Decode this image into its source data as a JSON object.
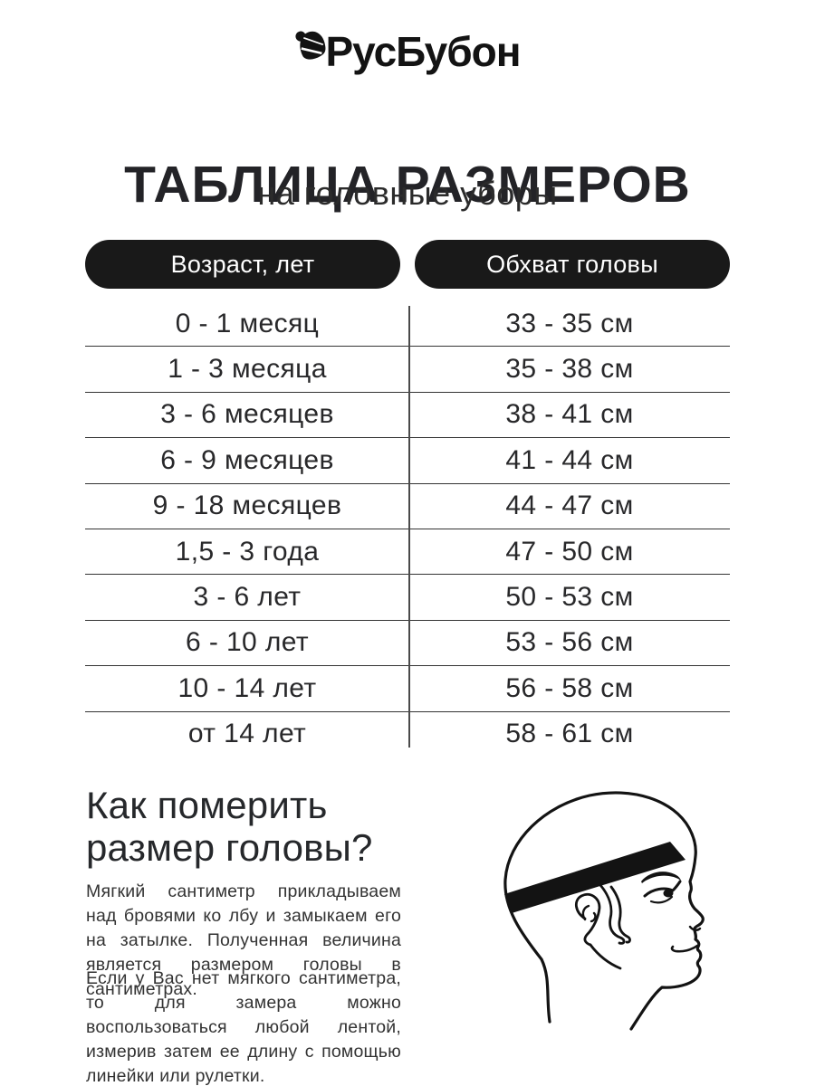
{
  "brand": {
    "name": "РусБубон",
    "logo_icon": "beanie-hat"
  },
  "title": "ТАБЛИЦА РАЗМЕРОВ",
  "subtitle": "на головные уборы",
  "size_table": {
    "columns": [
      {
        "key": "age",
        "label": "Возраст, лет"
      },
      {
        "key": "circumference",
        "label": "Обхват головы"
      }
    ],
    "rows": [
      {
        "age": "0 - 1 месяц",
        "circumference": "33 - 35 см"
      },
      {
        "age": "1 - 3 месяца",
        "circumference": "35 - 38 см"
      },
      {
        "age": "3 - 6 месяцев",
        "circumference": "38 - 41 см"
      },
      {
        "age": "6 - 9 месяцев",
        "circumference": "41 - 44 см"
      },
      {
        "age": "9 - 18 месяцев",
        "circumference": "44 - 47 см"
      },
      {
        "age": "1,5 - 3 года",
        "circumference": "47 - 50 см"
      },
      {
        "age": "3 - 6 лет",
        "circumference": "50 - 53 см"
      },
      {
        "age": "6 - 10 лет",
        "circumference": "53 - 56 см"
      },
      {
        "age": "10 - 14 лет",
        "circumference": "56 - 58 см"
      },
      {
        "age": "от 14 лет",
        "circumference": "58 - 61 см"
      }
    ]
  },
  "how_to": {
    "heading": "Как померить размер головы?",
    "paragraphs": [
      "Мягкий сантиметр прикладываем над бровями ко лбу и замыкаем его на затылке. Полученная величина является размером головы в сантиметрах.",
      "Если у Вас нет мягкого сантиметра, то для замера можно воспользоваться любой лентой, измерив затем ее длину с помощью линейки или рулетки."
    ]
  },
  "illustration": {
    "name": "head-profile-with-measuring-tape"
  },
  "colors": {
    "ink": "#1d1d1f",
    "pill_bg": "#191919",
    "pill_text": "#ffffff",
    "row_line": "#343434",
    "background": "#ffffff"
  }
}
